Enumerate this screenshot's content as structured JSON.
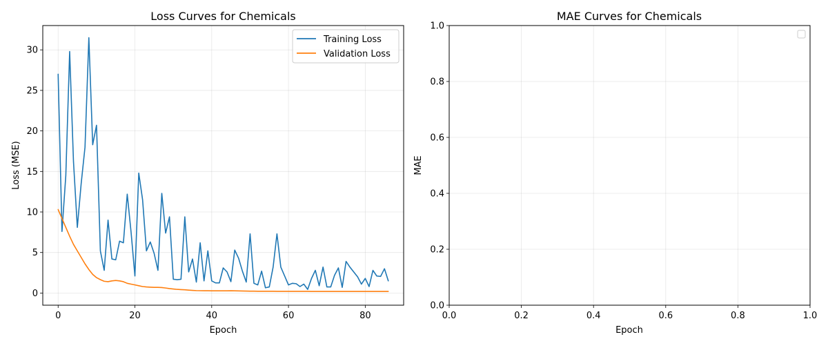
{
  "chart_data": [
    {
      "type": "line",
      "title": "Loss Curves for Chemicals",
      "xlabel": "Epoch",
      "ylabel": "Loss (MSE)",
      "xlim": [
        -4,
        90
      ],
      "ylim": [
        -1.5,
        33
      ],
      "xticks": [
        0,
        20,
        40,
        60,
        80
      ],
      "yticks": [
        0,
        5,
        10,
        15,
        20,
        25,
        30
      ],
      "grid": true,
      "legend": "top-right",
      "series": [
        {
          "name": "Training Loss",
          "color": "#1f77b4",
          "x": [
            0,
            1,
            2,
            3,
            4,
            5,
            6,
            7,
            8,
            9,
            10,
            11,
            12,
            13,
            14,
            15,
            16,
            17,
            18,
            19,
            20,
            21,
            22,
            23,
            24,
            25,
            26,
            27,
            28,
            29,
            30,
            31,
            32,
            33,
            34,
            35,
            36,
            37,
            38,
            39,
            40,
            41,
            42,
            43,
            44,
            45,
            46,
            47,
            48,
            49,
            50,
            51,
            52,
            53,
            54,
            55,
            56,
            57,
            58,
            59,
            60,
            61,
            62,
            63,
            64,
            65,
            66,
            67,
            68,
            69,
            70,
            71,
            72,
            73,
            74,
            75,
            76,
            77,
            78,
            79,
            80,
            81,
            82,
            83,
            84,
            85,
            86
          ],
          "y": [
            27.0,
            7.6,
            14.5,
            29.8,
            16.2,
            8.1,
            13.5,
            18.0,
            31.5,
            18.3,
            20.7,
            5.2,
            2.8,
            9.0,
            4.2,
            4.1,
            6.4,
            6.2,
            12.2,
            7.5,
            2.1,
            14.8,
            11.5,
            5.2,
            6.3,
            4.9,
            2.8,
            12.3,
            7.4,
            9.4,
            1.7,
            1.65,
            1.7,
            9.4,
            2.6,
            4.2,
            1.35,
            6.2,
            1.5,
            5.2,
            1.5,
            1.25,
            1.25,
            3.1,
            2.6,
            1.4,
            5.3,
            4.3,
            2.7,
            1.35,
            7.3,
            1.2,
            1.0,
            2.7,
            0.65,
            0.75,
            3.2,
            7.3,
            3.2,
            2.1,
            1.0,
            1.2,
            1.15,
            0.8,
            1.1,
            0.45,
            1.8,
            2.8,
            0.9,
            3.2,
            0.75,
            0.75,
            2.2,
            3.1,
            0.7,
            3.9,
            3.2,
            2.6,
            2.0,
            1.1,
            1.8,
            0.8,
            2.8,
            2.1,
            2.05,
            3.0,
            1.5
          ]
        },
        {
          "name": "Validation Loss",
          "color": "#ff7f0e",
          "x": [
            0,
            1,
            2,
            3,
            4,
            5,
            6,
            7,
            8,
            9,
            10,
            11,
            12,
            13,
            14,
            15,
            16,
            17,
            18,
            19,
            20,
            21,
            22,
            23,
            24,
            25,
            26,
            27,
            28,
            29,
            30,
            31,
            32,
            33,
            34,
            35,
            36,
            37,
            38,
            39,
            40,
            41,
            42,
            43,
            44,
            45,
            46,
            47,
            48,
            49,
            50,
            51,
            52,
            53,
            54,
            55,
            56,
            57,
            58,
            59,
            60,
            61,
            62,
            63,
            64,
            65,
            66,
            67,
            68,
            69,
            70,
            71,
            72,
            73,
            74,
            75,
            76,
            77,
            78,
            79,
            80,
            81,
            82,
            83,
            84,
            85,
            86
          ],
          "y": [
            10.3,
            9.2,
            8.1,
            7.0,
            6.0,
            5.2,
            4.4,
            3.6,
            2.9,
            2.3,
            1.9,
            1.65,
            1.45,
            1.4,
            1.5,
            1.55,
            1.5,
            1.4,
            1.2,
            1.1,
            1.0,
            0.9,
            0.8,
            0.75,
            0.72,
            0.7,
            0.7,
            0.68,
            0.62,
            0.55,
            0.5,
            0.45,
            0.42,
            0.4,
            0.36,
            0.33,
            0.3,
            0.29,
            0.28,
            0.28,
            0.27,
            0.27,
            0.27,
            0.27,
            0.27,
            0.28,
            0.27,
            0.26,
            0.25,
            0.24,
            0.23,
            0.23,
            0.22,
            0.22,
            0.22,
            0.22,
            0.22,
            0.21,
            0.21,
            0.21,
            0.21,
            0.21,
            0.21,
            0.21,
            0.21,
            0.21,
            0.2,
            0.2,
            0.2,
            0.2,
            0.2,
            0.2,
            0.2,
            0.2,
            0.2,
            0.2,
            0.2,
            0.2,
            0.2,
            0.2,
            0.2,
            0.2,
            0.2,
            0.2,
            0.2,
            0.2,
            0.2
          ]
        }
      ]
    },
    {
      "type": "line",
      "title": "MAE Curves for Chemicals",
      "xlabel": "Epoch",
      "ylabel": "MAE",
      "xlim": [
        0,
        1
      ],
      "ylim": [
        0,
        1
      ],
      "xticks": [
        0.0,
        0.2,
        0.4,
        0.6,
        0.8,
        1.0
      ],
      "yticks": [
        0.0,
        0.2,
        0.4,
        0.6,
        0.8,
        1.0
      ],
      "grid": true,
      "legend": "top-right",
      "series": []
    }
  ]
}
